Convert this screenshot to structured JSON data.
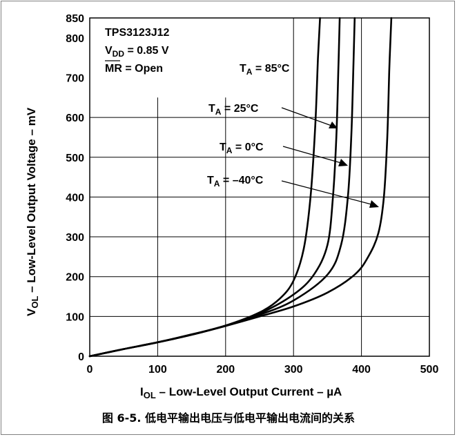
{
  "caption": "图 6-5. 低电平输出电压与低电平输出电流间的关系",
  "chart_data": {
    "type": "line",
    "xlabel": "I_OL – Low-Level Output Current – µA",
    "xlabel_main": "I",
    "xlabel_sub": "OL",
    "xlabel_rest": " – Low-Level Output Current – µA",
    "ylabel": "V_OL – Low-Level Output Voltage – mV",
    "ylabel_main": "V",
    "ylabel_sub": "OL",
    "ylabel_rest": " – Low-Level Output Voltage – mV",
    "xlim": [
      0,
      500
    ],
    "ylim": [
      0,
      850
    ],
    "x_ticks": [
      0,
      100,
      200,
      300,
      400,
      500
    ],
    "y_ticks": [
      0,
      100,
      200,
      300,
      400,
      500,
      600,
      700,
      800,
      850
    ],
    "grid": true,
    "conditions": {
      "device": "TPS3123J12",
      "vdd_main": "V",
      "vdd_sub": "DD",
      "vdd_rest": " = 0.85 V",
      "mr_main": "MR",
      "mr_rest": " = Open"
    },
    "series": [
      {
        "name": "T_A = 85°C",
        "label_main": "T",
        "label_sub": "A",
        "label_rest": " = 85°C",
        "x": [
          0,
          50,
          100,
          150,
          200,
          250,
          280,
          300,
          315,
          325,
          332,
          336,
          339
        ],
        "y": [
          0,
          18,
          35,
          55,
          77,
          110,
          145,
          190,
          270,
          400,
          580,
          750,
          850
        ]
      },
      {
        "name": "T_A = 25°C",
        "label_main": "T",
        "label_sub": "A",
        "label_rest": " = 25°C",
        "x": [
          0,
          50,
          100,
          150,
          200,
          250,
          300,
          330,
          350,
          358,
          363,
          366,
          368
        ],
        "y": [
          0,
          18,
          35,
          54,
          77,
          107,
          155,
          205,
          280,
          400,
          550,
          720,
          850
        ]
      },
      {
        "name": "T_A = 0°C",
        "label_main": "T",
        "label_sub": "A",
        "label_rest": " = 0°C",
        "x": [
          0,
          50,
          100,
          150,
          200,
          250,
          300,
          350,
          370,
          380,
          385,
          388,
          390
        ],
        "y": [
          0,
          18,
          35,
          54,
          77,
          104,
          140,
          205,
          280,
          400,
          550,
          720,
          850
        ]
      },
      {
        "name": "T_A = –40°C",
        "label_main": "T",
        "label_sub": "A",
        "label_rest": " = –40°C",
        "x": [
          0,
          50,
          100,
          150,
          200,
          250,
          300,
          350,
          390,
          410,
          425,
          433,
          438,
          441,
          444
        ],
        "y": [
          0,
          18,
          35,
          54,
          76,
          100,
          125,
          160,
          205,
          250,
          310,
          400,
          550,
          720,
          850
        ]
      }
    ]
  }
}
